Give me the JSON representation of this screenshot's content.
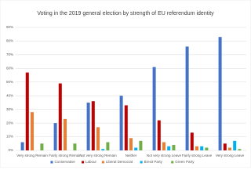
{
  "chart_data": {
    "type": "bar",
    "title": "Voting in the 2019 general election by strength of EU referendum identity",
    "categories": [
      "Very strong Remain",
      "Fairly strong Remain",
      "Not very strong Remain",
      "Neither",
      "Not very strong Leave",
      "Fairly strong Leave",
      "Very strong Leave"
    ],
    "series": [
      {
        "name": "Conservative",
        "color": "#4472c4",
        "values": [
          6,
          20,
          35,
          40,
          61,
          76,
          83
        ]
      },
      {
        "name": "Labour",
        "color": "#c00000",
        "values": [
          57,
          49,
          36,
          33,
          22,
          13,
          5
        ]
      },
      {
        "name": "Liberal Democrat",
        "color": "#ed7d31",
        "values": [
          28,
          23,
          17,
          9,
          6,
          3,
          2
        ]
      },
      {
        "name": "Brexit Party",
        "color": "#00b0f0",
        "values": [
          0,
          0,
          1,
          2,
          3,
          3,
          7
        ]
      },
      {
        "name": "Green Party",
        "color": "#70ad47",
        "values": [
          5,
          5,
          6,
          7,
          4,
          2,
          1
        ]
      }
    ],
    "ylim": [
      0,
      90
    ],
    "yticks": [
      {
        "value": 0,
        "label": "0%"
      },
      {
        "value": 10,
        "label": "10%"
      },
      {
        "value": 20,
        "label": "20%"
      },
      {
        "value": 30,
        "label": "30%"
      },
      {
        "value": 40,
        "label": "40%"
      },
      {
        "value": 50,
        "label": "50%"
      },
      {
        "value": 60,
        "label": "60%"
      },
      {
        "value": 70,
        "label": "70%"
      },
      {
        "value": 80,
        "label": "80%"
      },
      {
        "value": 90,
        "label": "90%"
      }
    ],
    "grid": true,
    "legend": "bottom"
  }
}
